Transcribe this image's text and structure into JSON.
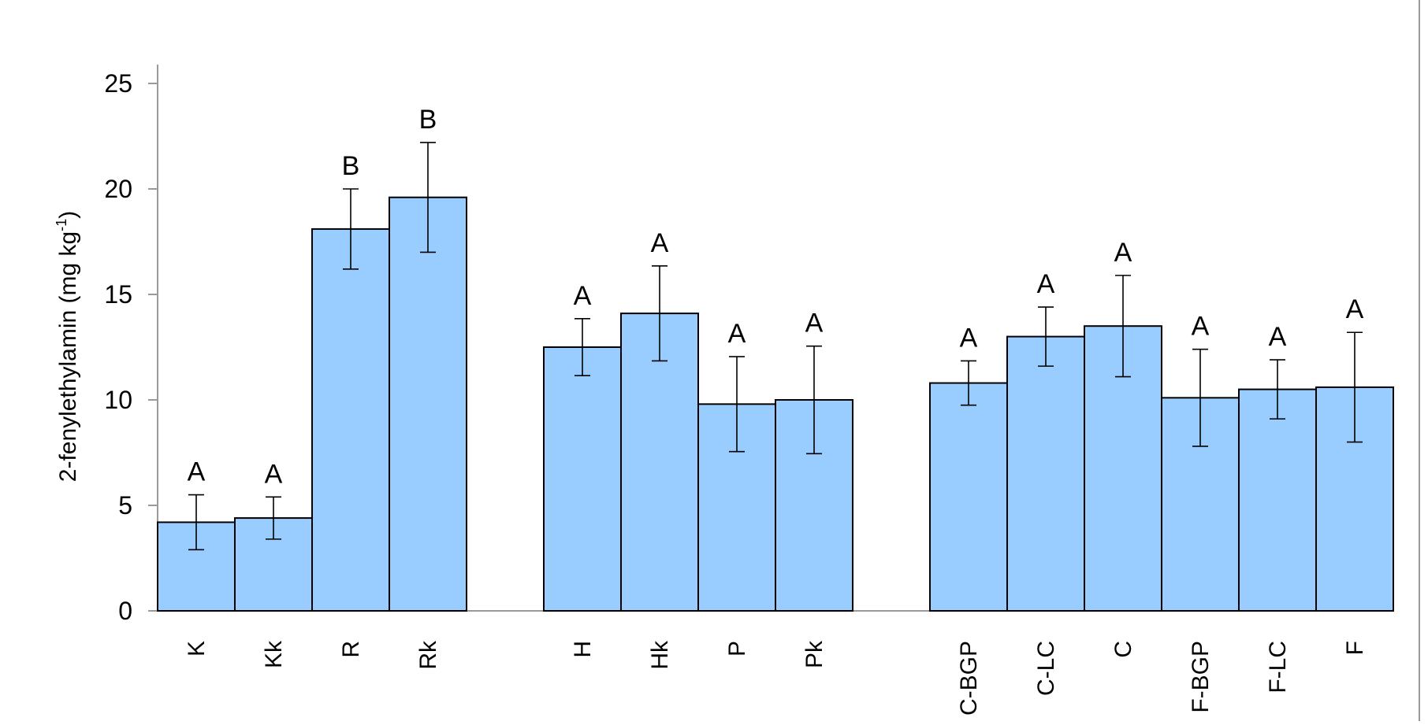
{
  "chart_data": {
    "type": "bar",
    "title": "",
    "xlabel": "",
    "ylabel": "2-fenylethylamin (mg kg",
    "ylabel_superscript": "-1",
    "ylabel_close": ")",
    "ylim": [
      0,
      25
    ],
    "yticks": [
      "0",
      "5",
      "10",
      "15",
      "20",
      "25"
    ],
    "grid": false,
    "legend": "none",
    "bar_color": "#99ccff",
    "groups": [
      {
        "categories": [
          "K",
          "Kk",
          "R",
          "Rk"
        ],
        "values": [
          4.2,
          4.4,
          18.1,
          19.6
        ],
        "errors": [
          1.3,
          1.0,
          1.9,
          2.6
        ],
        "letters": [
          "A",
          "A",
          "B",
          "B"
        ]
      },
      {
        "categories": [
          "H",
          "Hk",
          "P",
          "Pk"
        ],
        "values": [
          12.5,
          14.1,
          9.8,
          10.0
        ],
        "errors": [
          1.35,
          2.25,
          2.25,
          2.55
        ],
        "letters": [
          "A",
          "A",
          "A",
          "A"
        ]
      },
      {
        "categories": [
          "C-BGP",
          "C-LC",
          "C",
          "F-BGP",
          "F-LC",
          "F"
        ],
        "values": [
          10.8,
          13.0,
          13.5,
          10.1,
          10.5,
          10.6
        ],
        "errors": [
          1.05,
          1.4,
          2.4,
          2.3,
          1.4,
          2.6
        ],
        "letters": [
          "A",
          "A",
          "A",
          "A",
          "A",
          "A"
        ]
      }
    ]
  }
}
